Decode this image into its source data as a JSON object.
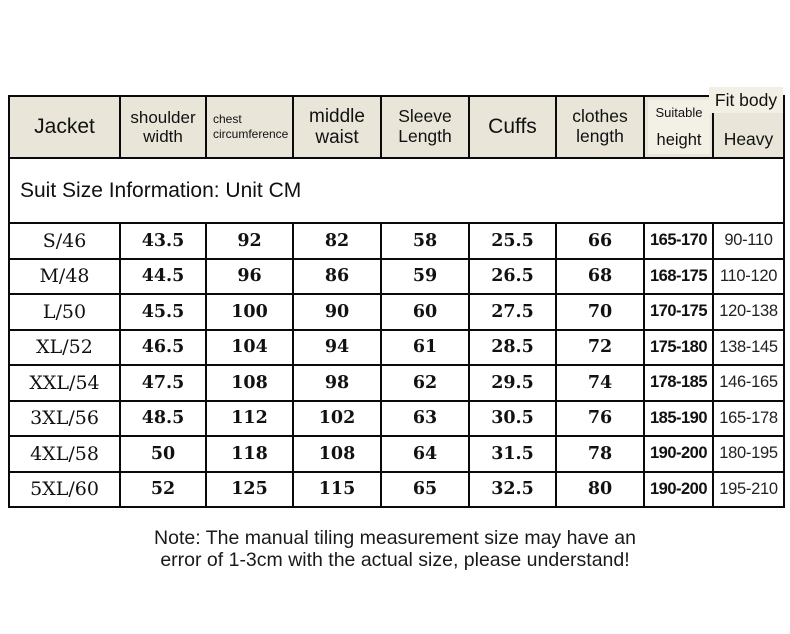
{
  "table": {
    "title": "Suit Size Information: Unit CM",
    "headers": {
      "jacket": "Jacket",
      "shoulder": "shoulder width",
      "chest": "chest circumference",
      "waist": "middle waist",
      "sleeve": "Sleeve Length",
      "cuffs": "Cuffs",
      "clothes": "clothes length",
      "suitable_line1": "Suitable",
      "suitable_line2": "height",
      "fit_line1": "Fit body",
      "fit_line2": "Heavy"
    },
    "rows": [
      [
        "S/46",
        "43.5",
        "92",
        "82",
        "58",
        "25.5",
        "66",
        "165-170",
        "90-110"
      ],
      [
        "M/48",
        "44.5",
        "96",
        "86",
        "59",
        "26.5",
        "68",
        "168-175",
        "110-120"
      ],
      [
        "L/50",
        "45.5",
        "100",
        "90",
        "60",
        "27.5",
        "70",
        "170-175",
        "120-138"
      ],
      [
        "XL/52",
        "46.5",
        "104",
        "94",
        "61",
        "28.5",
        "72",
        "175-180",
        "138-145"
      ],
      [
        "XXL/54",
        "47.5",
        "108",
        "98",
        "62",
        "29.5",
        "74",
        "178-185",
        "146-165"
      ],
      [
        "3XL/56",
        "48.5",
        "112",
        "102",
        "63",
        "30.5",
        "76",
        "185-190",
        "165-178"
      ],
      [
        "4XL/58",
        "50",
        "118",
        "108",
        "64",
        "31.5",
        "78",
        "190-200",
        "180-195"
      ],
      [
        "5XL/60",
        "52",
        "125",
        "115",
        "65",
        "32.5",
        "80",
        "190-200",
        "195-210"
      ]
    ]
  },
  "note": {
    "line1": "Note: The manual tiling measurement size may have an",
    "line2": "error of 1-3cm with the actual size, please understand!"
  },
  "colors": {
    "header_background": "#e9e6d9",
    "label_background": "#f2efe4",
    "border": "#0a0a0a",
    "text": "#111111"
  }
}
